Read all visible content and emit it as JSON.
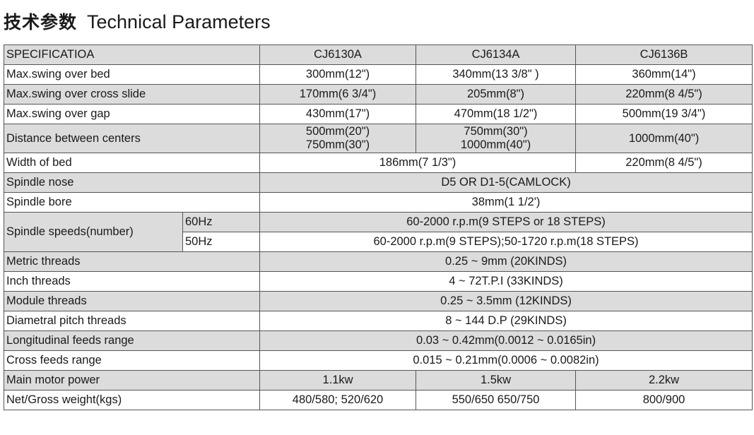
{
  "title": {
    "cn": "技术参数",
    "en": "Technical Parameters"
  },
  "header": [
    "SPECIFICATIOA",
    "CJ6130A",
    "CJ6134A",
    "CJ6136B"
  ],
  "rows": {
    "swing_bed": [
      "Max.swing over bed",
      "300mm(12\")",
      "340mm(13 3/8\" )",
      "360mm(14\")"
    ],
    "swing_cross": [
      "Max.swing over cross slide",
      "170mm(6 3/4\")",
      "205mm(8\")",
      "220mm(8 4/5\")"
    ],
    "swing_gap": [
      "Max.swing over gap",
      "430mm(17\")",
      "470mm(18 1/2\")",
      "500mm(19 3/4\")"
    ],
    "centers": [
      "Distance between centers",
      "500mm(20\")",
      "750mm(30\")",
      "750mm(30\")",
      "1000mm(40\")",
      "1000mm(40\")"
    ],
    "bed_width": [
      "Width of bed",
      "186mm(7 1/3\")",
      "220mm(8 4/5\")"
    ],
    "nose": [
      "Spindle nose",
      "D5 OR D1-5(CAMLOCK)"
    ],
    "bore": [
      "Spindle bore",
      "38mm(1 1/2')"
    ],
    "speeds": {
      "label": "Spindle speeds(number)",
      "hz60": "60Hz",
      "val60": "60-2000 r.p.m(9 STEPS or 18 STEPS)",
      "hz50": "50Hz",
      "val50": "60-2000 r.p.m(9 STEPS);50-1720 r.p.m(18 STEPS)"
    },
    "metric": [
      "Metric threads",
      "0.25 ~ 9mm  (20KINDS)"
    ],
    "inch": [
      "Inch threads",
      "4 ~ 72T.P.I  (33KINDS)"
    ],
    "module": [
      "Module threads",
      "0.25 ~ 3.5mm  (12KINDS)"
    ],
    "diametral": [
      "Diametral pitch threads",
      "8 ~ 144  D.P   (29KINDS)"
    ],
    "long_feeds": [
      "Longitudinal feeds range",
      "0.03 ~ 0.42mm(0.0012 ~ 0.0165in)"
    ],
    "cross_feeds": [
      "Cross feeds range",
      "0.015 ~ 0.21mm(0.0006 ~ 0.0082in)"
    ],
    "motor": [
      "Main motor power",
      "1.1kw",
      "1.5kw",
      "2.2kw"
    ],
    "weight": [
      "Net/Gross weight(kgs)",
      "480/580; 520/620",
      "550/650  650/750",
      "800/900"
    ]
  }
}
